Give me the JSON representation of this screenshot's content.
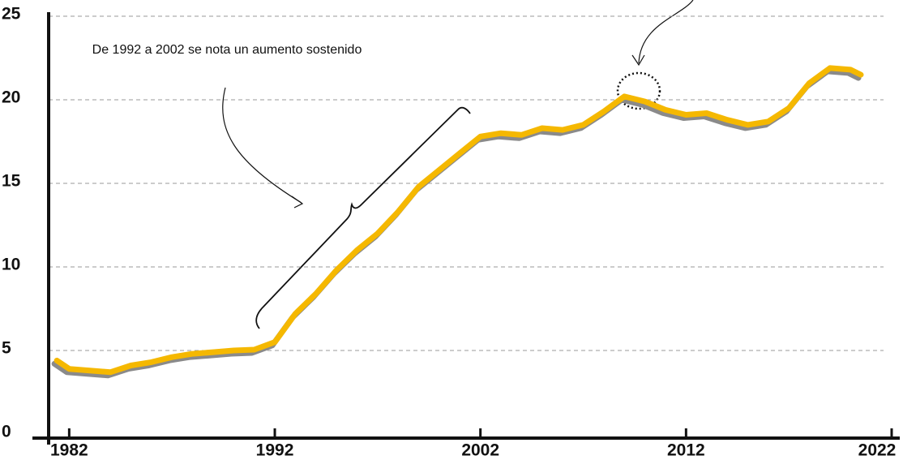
{
  "chart_data": {
    "type": "line",
    "annotations": [
      "De 1992 a 2002 se nota un aumento sostenido"
    ],
    "x": [
      1981.4,
      1982,
      1983,
      1984,
      1985,
      1986,
      1987,
      1988,
      1989,
      1990,
      1991,
      1992,
      1993,
      1994,
      1995,
      1996,
      1997,
      1998,
      1999,
      2000,
      2001,
      2002,
      2003,
      2004,
      2005,
      2006,
      2007,
      2008,
      2009,
      2010,
      2011,
      2012,
      2013,
      2014,
      2015,
      2016,
      2017,
      2018,
      2019,
      2020,
      2020.5
    ],
    "series": [
      {
        "color": "#f5b800",
        "values": [
          4.4,
          3.9,
          3.8,
          3.7,
          4.1,
          4.3,
          4.6,
          4.8,
          4.9,
          5.0,
          5.05,
          5.5,
          7.2,
          8.4,
          9.8,
          11.0,
          12.0,
          13.3,
          14.8,
          15.8,
          16.8,
          17.8,
          18.0,
          17.9,
          18.3,
          18.2,
          18.5,
          19.3,
          20.2,
          19.9,
          19.4,
          19.1,
          19.2,
          18.8,
          18.5,
          18.7,
          19.5,
          21.0,
          21.9,
          21.8,
          21.5
        ]
      }
    ],
    "xlim": [
      1981,
      2022
    ],
    "xticks": [
      1982,
      1992,
      2002,
      2012,
      2022
    ],
    "ylim": [
      0,
      25
    ],
    "yticks": [
      0,
      5,
      10,
      15,
      20,
      25
    ],
    "grid": true
  }
}
